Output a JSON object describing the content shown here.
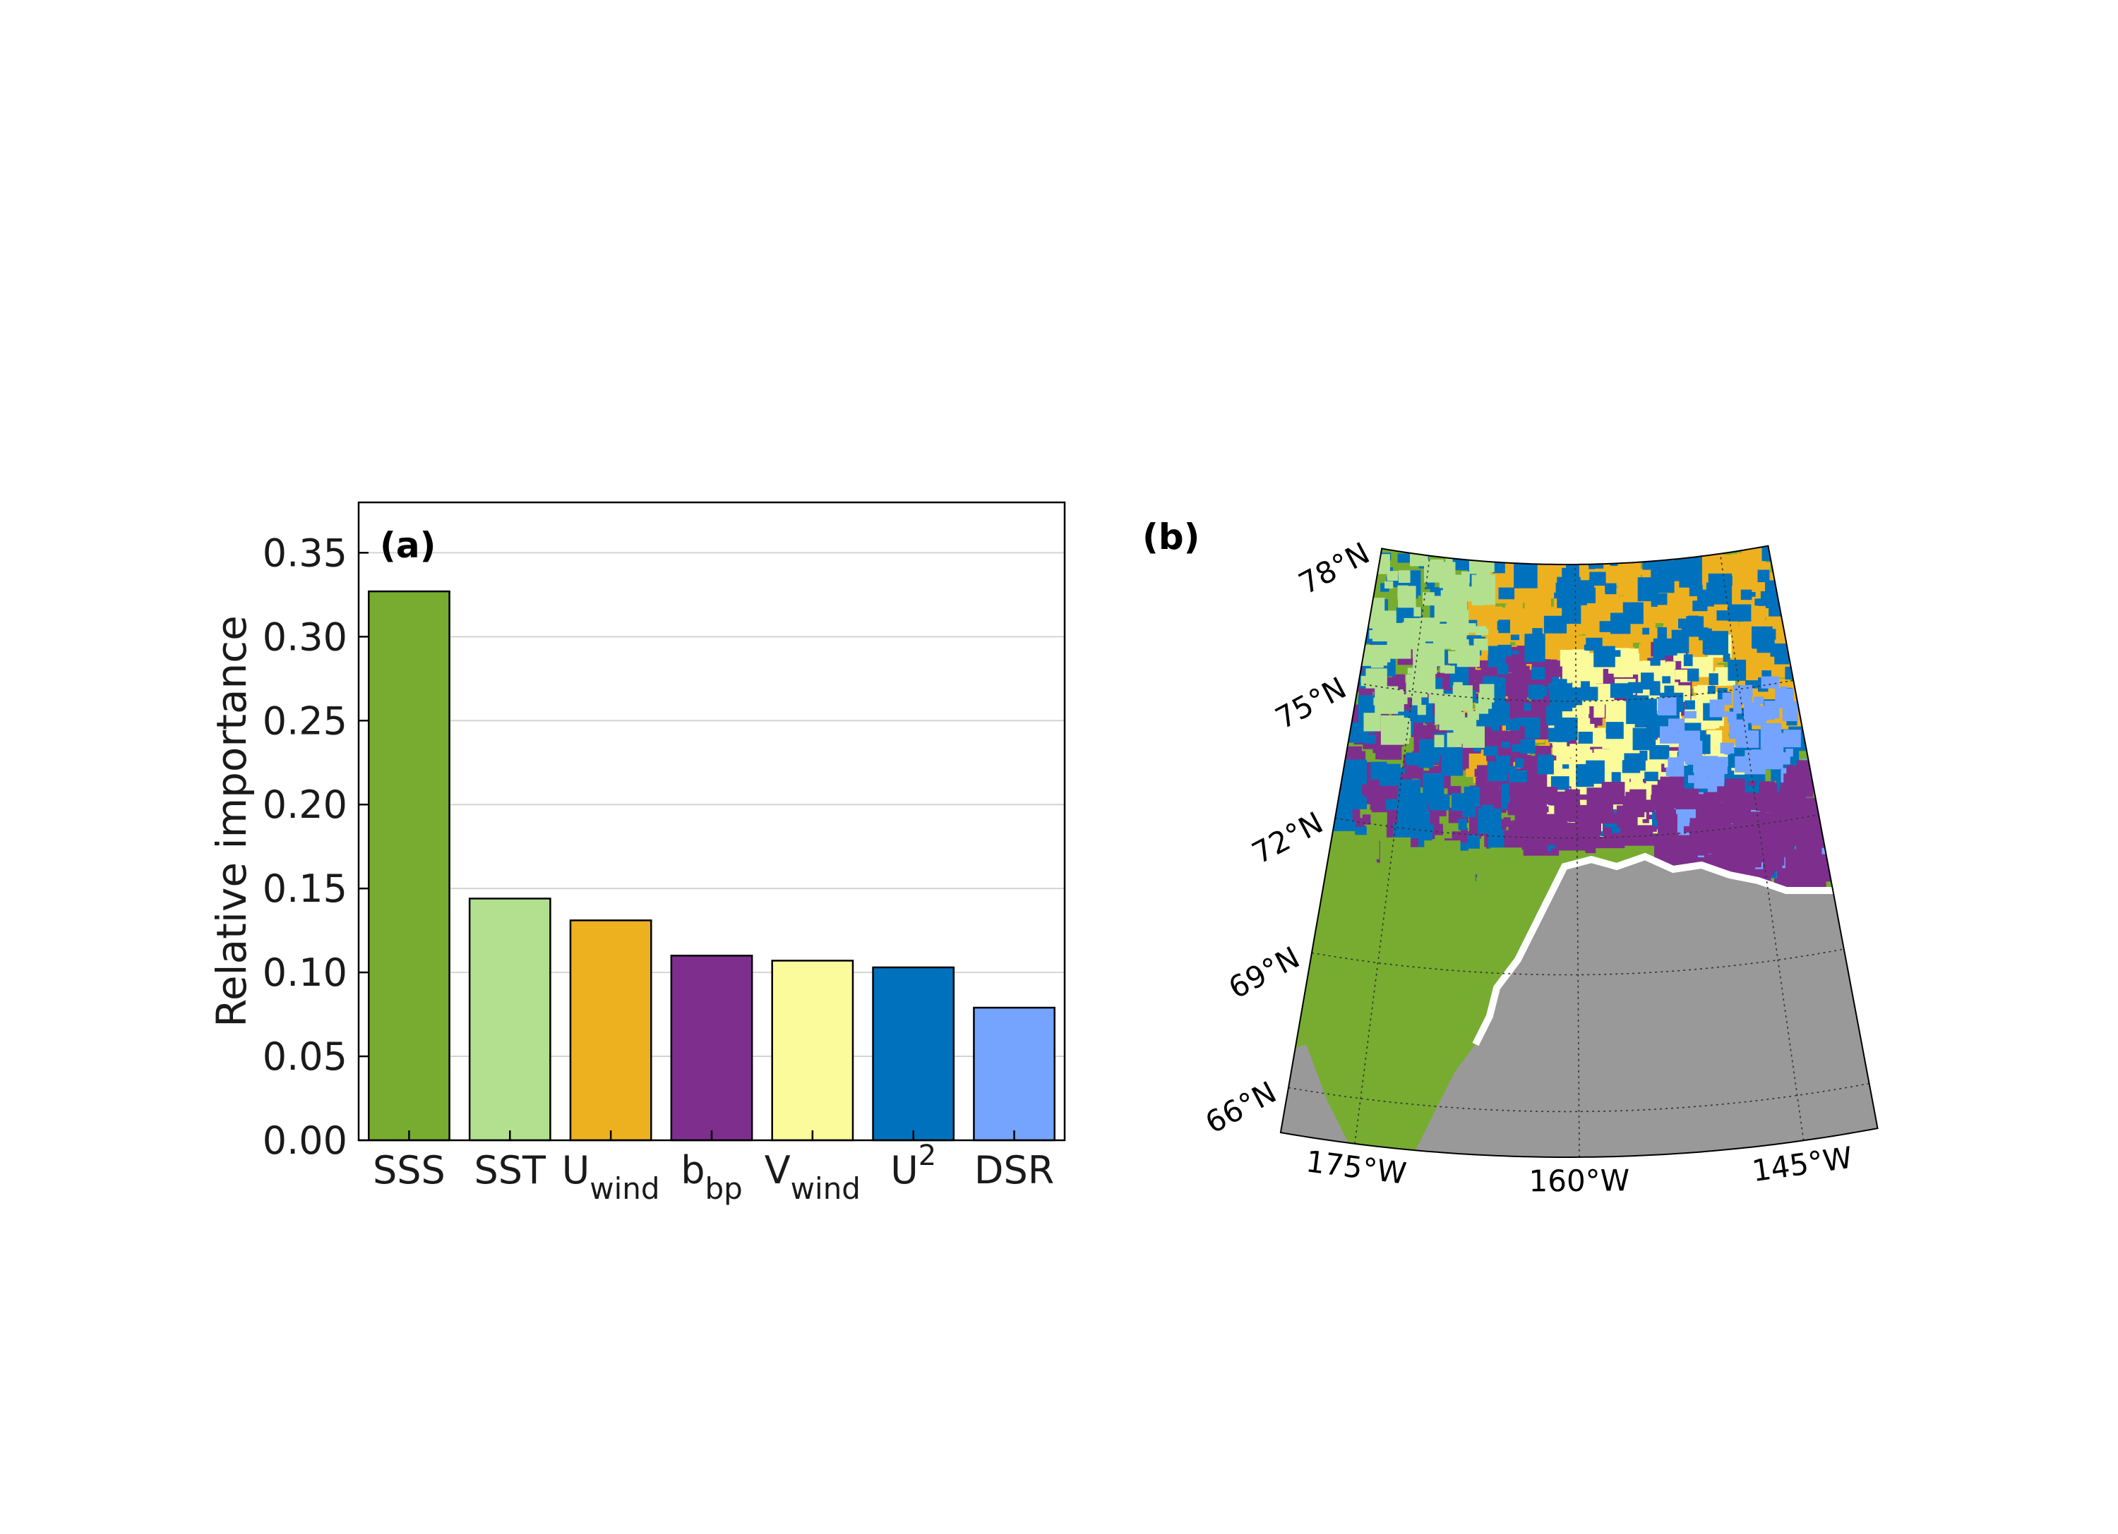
{
  "chart_data": [
    {
      "type": "bar",
      "panel_label": "(a)",
      "ylabel": "Relative importance",
      "categories": [
        {
          "base": "SSS",
          "sub": "",
          "sup": ""
        },
        {
          "base": "SST",
          "sub": "",
          "sup": ""
        },
        {
          "base": "U",
          "sub": "wind",
          "sup": ""
        },
        {
          "base": "b",
          "sub": "bp",
          "sup": ""
        },
        {
          "base": "V",
          "sub": "wind",
          "sup": ""
        },
        {
          "base": "U",
          "sub": "",
          "sup": "2"
        },
        {
          "base": "DSR",
          "sub": "",
          "sup": ""
        }
      ],
      "values": [
        0.327,
        0.144,
        0.131,
        0.11,
        0.107,
        0.103,
        0.079
      ],
      "colors": [
        "#77ac30",
        "#b3e08f",
        "#edb120",
        "#7e2f8e",
        "#fbfb9b",
        "#0072bd",
        "#74a4ff"
      ],
      "ylim": [
        0,
        0.38
      ],
      "yticks": [
        0.0,
        0.05,
        0.1,
        0.15,
        0.2,
        0.25,
        0.3,
        0.35
      ],
      "ytick_labels": [
        "0.00",
        "0.05",
        "0.10",
        "0.15",
        "0.20",
        "0.25",
        "0.30",
        "0.35"
      ],
      "grid": "horizontal"
    },
    {
      "type": "map",
      "panel_label": "(b)",
      "lat_labels": [
        "78°N",
        "75°N",
        "72°N",
        "69°N",
        "66°N"
      ],
      "lon_labels": [
        "175°W",
        "160°W",
        "145°W"
      ],
      "lat_range": [
        65,
        78
      ],
      "lon_range": [
        -180,
        -140
      ],
      "land_color": "#999999",
      "category_colors": [
        "#77ac30",
        "#b3e08f",
        "#edb120",
        "#7e2f8e",
        "#fbfb9b",
        "#0072bd",
        "#74a4ff"
      ]
    }
  ]
}
